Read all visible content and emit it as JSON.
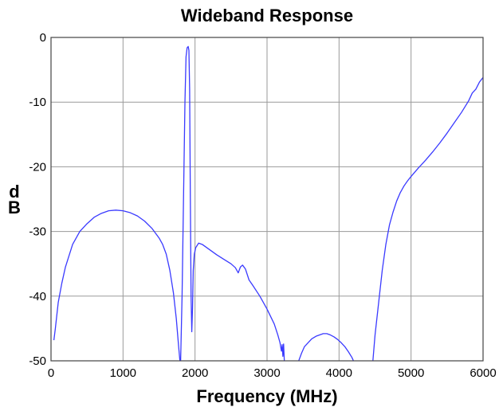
{
  "chart_data": {
    "type": "line",
    "title": "Wideband Response",
    "xlabel": "Frequency (MHz)",
    "ylabel": "dB",
    "xlim": [
      0,
      6000
    ],
    "ylim": [
      -50,
      0
    ],
    "xticks": [
      0,
      1000,
      2000,
      3000,
      4000,
      5000,
      6000
    ],
    "yticks": [
      0,
      -10,
      -20,
      -30,
      -40,
      -50
    ],
    "grid": true,
    "legend": "none",
    "color": "#3a3aff",
    "series": [
      {
        "segments": [
          [
            [
              40,
              -46.8
            ],
            [
              60,
              -45
            ],
            [
              100,
              -41
            ],
            [
              150,
              -38
            ],
            [
              200,
              -35.5
            ],
            [
              300,
              -32
            ],
            [
              400,
              -30
            ],
            [
              500,
              -28.8
            ],
            [
              600,
              -27.8
            ],
            [
              700,
              -27.2
            ],
            [
              800,
              -26.8
            ],
            [
              900,
              -26.7
            ],
            [
              1000,
              -26.8
            ],
            [
              1100,
              -27.1
            ],
            [
              1200,
              -27.6
            ],
            [
              1300,
              -28.4
            ],
            [
              1400,
              -29.5
            ],
            [
              1500,
              -31
            ],
            [
              1550,
              -32
            ],
            [
              1600,
              -33.5
            ],
            [
              1650,
              -36
            ],
            [
              1700,
              -39.5
            ],
            [
              1740,
              -43.5
            ],
            [
              1770,
              -47.5
            ],
            [
              1790,
              -50
            ]
          ],
          [
            [
              1800,
              -50
            ],
            [
              1820,
              -40
            ],
            [
              1840,
              -25
            ],
            [
              1860,
              -10
            ],
            [
              1875,
              -3
            ],
            [
              1890,
              -1.6
            ],
            [
              1905,
              -1.4
            ],
            [
              1915,
              -2
            ],
            [
              1925,
              -8
            ],
            [
              1935,
              -25
            ],
            [
              1945,
              -40
            ],
            [
              1955,
              -45.5
            ],
            [
              1965,
              -42
            ],
            [
              1975,
              -36
            ],
            [
              1990,
              -33.5
            ],
            [
              2010,
              -32.5
            ],
            [
              2050,
              -31.8
            ],
            [
              2100,
              -32
            ],
            [
              2200,
              -32.8
            ],
            [
              2300,
              -33.6
            ],
            [
              2400,
              -34.3
            ],
            [
              2500,
              -35
            ],
            [
              2560,
              -35.6
            ],
            [
              2600,
              -36.4
            ],
            [
              2630,
              -35.5
            ],
            [
              2660,
              -35.2
            ],
            [
              2700,
              -35.8
            ],
            [
              2750,
              -37.5
            ],
            [
              2800,
              -38.3
            ],
            [
              2900,
              -40
            ],
            [
              3000,
              -42
            ],
            [
              3100,
              -44.3
            ],
            [
              3150,
              -46
            ],
            [
              3180,
              -47.2
            ],
            [
              3200,
              -48.5
            ],
            [
              3210,
              -47.5
            ],
            [
              3220,
              -49.3
            ],
            [
              3230,
              -47.4
            ],
            [
              3240,
              -50
            ]
          ],
          [
            [
              3440,
              -50
            ],
            [
              3480,
              -48.8
            ],
            [
              3520,
              -47.8
            ],
            [
              3570,
              -47.2
            ],
            [
              3620,
              -46.6
            ],
            [
              3680,
              -46.2
            ],
            [
              3730,
              -46
            ],
            [
              3780,
              -45.8
            ],
            [
              3830,
              -45.8
            ],
            [
              3880,
              -46
            ],
            [
              3930,
              -46.3
            ],
            [
              3980,
              -46.7
            ],
            [
              4030,
              -47.2
            ],
            [
              4080,
              -47.8
            ],
            [
              4130,
              -48.6
            ],
            [
              4180,
              -49.5
            ],
            [
              4200,
              -50
            ]
          ],
          [
            [
              4470,
              -50
            ],
            [
              4500,
              -46
            ],
            [
              4550,
              -41
            ],
            [
              4600,
              -36
            ],
            [
              4650,
              -32
            ],
            [
              4700,
              -29
            ],
            [
              4750,
              -27
            ],
            [
              4800,
              -25.3
            ],
            [
              4850,
              -24
            ],
            [
              4900,
              -23
            ],
            [
              4950,
              -22.2
            ],
            [
              5000,
              -21.5
            ],
            [
              5100,
              -20.2
            ],
            [
              5200,
              -19
            ],
            [
              5300,
              -17.7
            ],
            [
              5400,
              -16.3
            ],
            [
              5500,
              -14.8
            ],
            [
              5600,
              -13.2
            ],
            [
              5700,
              -11.6
            ],
            [
              5800,
              -9.8
            ],
            [
              5850,
              -8.6
            ],
            [
              5900,
              -8
            ],
            [
              5950,
              -6.9
            ],
            [
              6000,
              -6.2
            ]
          ]
        ]
      }
    ]
  }
}
